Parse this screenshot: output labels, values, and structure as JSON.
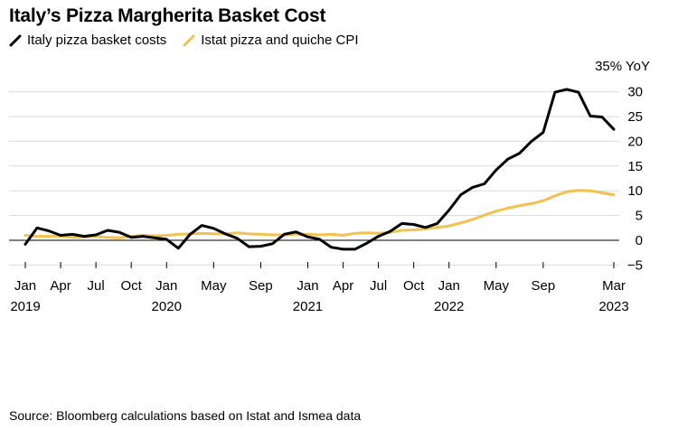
{
  "title": "Italy’s Pizza Margherita Basket Cost",
  "source": "Source: Bloomberg calculations based on Istat and Ismea data",
  "legend": [
    {
      "label": "Italy pizza basket costs",
      "color": "#000000",
      "icon": "diagonal-line-icon"
    },
    {
      "label": "Istat pizza and quiche CPI",
      "color": "#f2c14e",
      "icon": "diagonal-line-icon"
    }
  ],
  "chart_data": {
    "type": "line",
    "unit_label": "35% YoY",
    "ylim": [
      -5,
      35
    ],
    "yticks": [
      -5,
      0,
      5,
      10,
      15,
      20,
      25,
      30
    ],
    "ytick_labels": [
      "−5",
      "0",
      "5",
      "10",
      "15",
      "20",
      "25",
      "30"
    ],
    "x": [
      "Jan 2019",
      "Feb 2019",
      "Mar 2019",
      "Apr 2019",
      "May 2019",
      "Jun 2019",
      "Jul 2019",
      "Aug 2019",
      "Sep 2019",
      "Oct 2019",
      "Nov 2019",
      "Dec 2019",
      "Jan 2020",
      "Feb 2020",
      "Mar 2020",
      "Apr 2020",
      "May 2020",
      "Jun 2020",
      "Jul 2020",
      "Aug 2020",
      "Sep 2020",
      "Oct 2020",
      "Nov 2020",
      "Dec 2020",
      "Jan 2021",
      "Feb 2021",
      "Mar 2021",
      "Apr 2021",
      "May 2021",
      "Jun 2021",
      "Jul 2021",
      "Aug 2021",
      "Sep 2021",
      "Oct 2021",
      "Nov 2021",
      "Dec 2021",
      "Jan 2022",
      "Feb 2022",
      "Mar 2022",
      "Apr 2022",
      "May 2022",
      "Jun 2022",
      "Jul 2022",
      "Aug 2022",
      "Sep 2022",
      "Oct 2022",
      "Nov 2022",
      "Dec 2022",
      "Jan 2023",
      "Feb 2023",
      "Mar 2023"
    ],
    "xticks": [
      {
        "index": 0,
        "label": "Jan",
        "year": "2019"
      },
      {
        "index": 3,
        "label": "Apr",
        "year": ""
      },
      {
        "index": 6,
        "label": "Jul",
        "year": ""
      },
      {
        "index": 9,
        "label": "Oct",
        "year": ""
      },
      {
        "index": 12,
        "label": "Jan",
        "year": "2020"
      },
      {
        "index": 16,
        "label": "May",
        "year": ""
      },
      {
        "index": 20,
        "label": "Sep",
        "year": ""
      },
      {
        "index": 24,
        "label": "Jan",
        "year": "2021"
      },
      {
        "index": 27,
        "label": "Apr",
        "year": ""
      },
      {
        "index": 30,
        "label": "Jul",
        "year": ""
      },
      {
        "index": 33,
        "label": "Oct",
        "year": ""
      },
      {
        "index": 36,
        "label": "Jan",
        "year": "2022"
      },
      {
        "index": 40,
        "label": "May",
        "year": ""
      },
      {
        "index": 44,
        "label": "Sep",
        "year": ""
      },
      {
        "index": 50,
        "label": "Mar",
        "year": "2023"
      }
    ],
    "series": [
      {
        "name": "Italy pizza basket costs",
        "color": "#000000",
        "values": [
          -0.8,
          2.5,
          1.9,
          1.0,
          1.2,
          0.8,
          1.1,
          2.0,
          1.6,
          0.6,
          0.8,
          0.5,
          0.2,
          -1.6,
          1.2,
          3.0,
          2.4,
          1.3,
          0.4,
          -1.3,
          -1.2,
          -0.7,
          1.2,
          1.7,
          0.7,
          0.2,
          -1.4,
          -1.8,
          -1.8,
          -0.6,
          0.8,
          1.8,
          3.4,
          3.2,
          2.6,
          3.4,
          6.1,
          9.2,
          10.7,
          11.4,
          14.2,
          16.4,
          17.6,
          20.0,
          21.8,
          29.9,
          30.5,
          29.9,
          25.1,
          24.9,
          22.4
        ]
      },
      {
        "name": "Istat pizza and quiche CPI",
        "color": "#f2c14e",
        "values": [
          1.0,
          0.8,
          0.8,
          0.8,
          0.6,
          0.6,
          0.8,
          0.6,
          0.5,
          0.8,
          1.0,
          0.9,
          1.0,
          1.2,
          1.3,
          1.4,
          1.3,
          1.3,
          1.5,
          1.3,
          1.2,
          1.1,
          1.1,
          1.2,
          1.2,
          1.1,
          1.2,
          1.0,
          1.4,
          1.5,
          1.4,
          1.6,
          2.0,
          2.1,
          2.3,
          2.6,
          2.9,
          3.5,
          4.2,
          5.1,
          5.9,
          6.5,
          7.0,
          7.4,
          8.0,
          9.0,
          9.8,
          10.1,
          10.0,
          9.6,
          9.2
        ]
      }
    ]
  }
}
